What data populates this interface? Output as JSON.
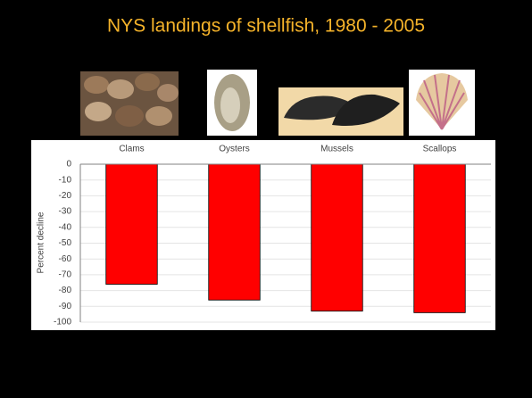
{
  "chart_data": {
    "type": "bar",
    "title": "NYS landings of shellfish, 1980 - 2005",
    "categories": [
      "Clams",
      "Oysters",
      "Mussels",
      "Scallops"
    ],
    "values": [
      -76,
      -86,
      -93,
      -94
    ],
    "color": "#ff0000",
    "ylabel": "Percent decline",
    "ylim": [
      -100,
      0
    ],
    "yticks": [
      0,
      -10,
      -20,
      -30,
      -40,
      -50,
      -60,
      -70,
      -80,
      -90,
      -100
    ],
    "grid": true
  }
}
